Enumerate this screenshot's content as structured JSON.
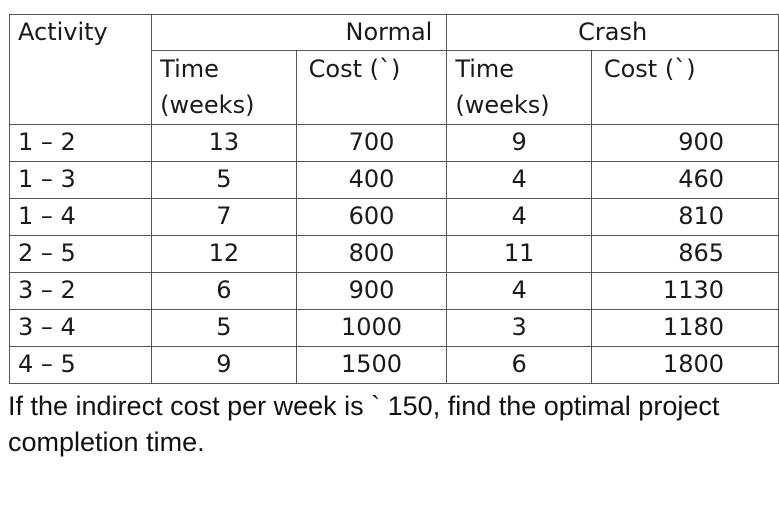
{
  "table": {
    "header": {
      "activity": "Activity",
      "normal": "Normal",
      "crash": "Crash",
      "normal_time_line1": "Time",
      "normal_time_line2": "(weeks)",
      "normal_cost": "Cost (`)",
      "crash_time_line1": "Time",
      "crash_time_line2": "(weeks)",
      "crash_cost": "Cost (`)"
    },
    "rows": [
      {
        "activity": "1 – 2",
        "normal_time": "13",
        "normal_cost": "700",
        "crash_time": "9",
        "crash_cost": "900"
      },
      {
        "activity": "1 – 3",
        "normal_time": "5",
        "normal_cost": "400",
        "crash_time": "4",
        "crash_cost": "460"
      },
      {
        "activity": "1 – 4",
        "normal_time": "7",
        "normal_cost": "600",
        "crash_time": "4",
        "crash_cost": "810"
      },
      {
        "activity": "2 – 5",
        "normal_time": "12",
        "normal_cost": "800",
        "crash_time": "11",
        "crash_cost": "865"
      },
      {
        "activity": "3 – 2",
        "normal_time": "6",
        "normal_cost": "900",
        "crash_time": "4",
        "crash_cost": "1130"
      },
      {
        "activity": "3 – 4",
        "normal_time": "5",
        "normal_cost": "1000",
        "crash_time": "3",
        "crash_cost": "1180"
      },
      {
        "activity": "4 – 5",
        "normal_time": "9",
        "normal_cost": "1500",
        "crash_time": "6",
        "crash_cost": "1800"
      }
    ]
  },
  "question": "If the indirect cost per week is ` 150, find the optimal project completion time."
}
